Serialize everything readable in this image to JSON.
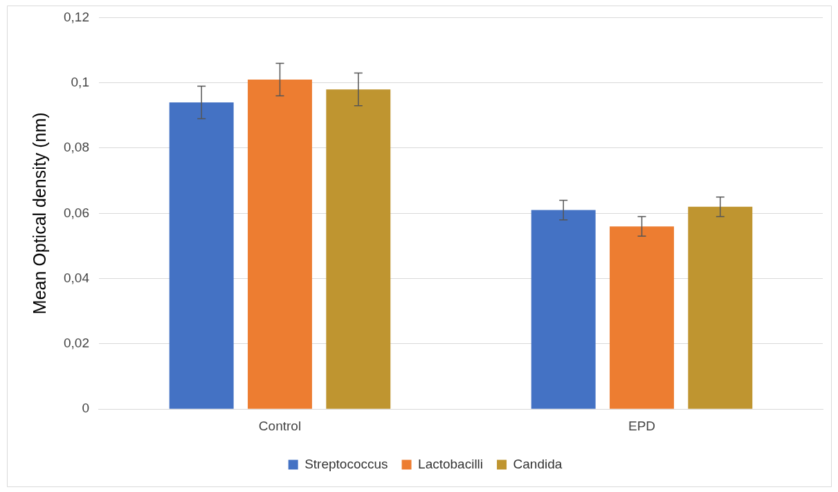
{
  "chart_data": {
    "type": "bar",
    "ylabel": "Mean Optical density (nm)",
    "categories": [
      "Control",
      "EPD"
    ],
    "series": [
      {
        "name": "Streptococcus",
        "color": "#4472c4",
        "values": [
          0.094,
          0.061
        ],
        "errors": [
          0.005,
          0.003
        ]
      },
      {
        "name": "Lactobacilli",
        "color": "#ed7d31",
        "values": [
          0.101,
          0.056
        ],
        "errors": [
          0.005,
          0.003
        ]
      },
      {
        "name": "Candida",
        "color": "#bf9530",
        "values": [
          0.098,
          0.062
        ],
        "errors": [
          0.005,
          0.003
        ]
      }
    ],
    "ylim": [
      0,
      0.12
    ],
    "yticks": [
      {
        "value": 0,
        "label": "0"
      },
      {
        "value": 0.02,
        "label": "0,02"
      },
      {
        "value": 0.04,
        "label": "0,04"
      },
      {
        "value": 0.06,
        "label": "0,06"
      },
      {
        "value": 0.08,
        "label": "0,08"
      },
      {
        "value": 0.1,
        "label": "0,1"
      },
      {
        "value": 0.12,
        "label": "0,12"
      }
    ],
    "grid": "y",
    "legend": "bottom"
  }
}
